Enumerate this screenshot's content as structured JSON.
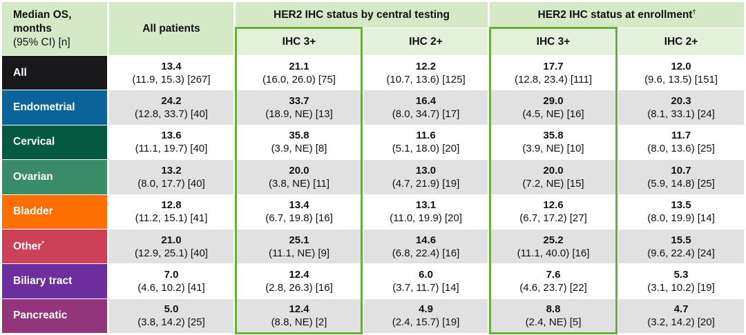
{
  "header": {
    "corner_line1": "Median OS,",
    "corner_line2": "months",
    "corner_line3": "(95% CI) [n]",
    "all_patients": "All patients",
    "group_central": "HER2 IHC status by central testing",
    "group_enrollment": "HER2 IHC status at enrollment",
    "group_enrollment_mark": "†",
    "sub_columns": [
      "IHC 3+",
      "IHC 2+",
      "IHC 3+",
      "IHC 2+"
    ]
  },
  "rows": [
    {
      "label": "All",
      "color": "#18181a",
      "cells": [
        {
          "median": "13.4",
          "ci": "(11.9, 15.3) [267]"
        },
        {
          "median": "21.1",
          "ci": "(16.0, 26.0) [75]"
        },
        {
          "median": "12.2",
          "ci": "(10.7, 13.6) [125]"
        },
        {
          "median": "17.7",
          "ci": "(12.8, 23.4) [111]"
        },
        {
          "median": "12.0",
          "ci": "(9.6, 13.5) [151]"
        }
      ]
    },
    {
      "label": "Endometrial",
      "color": "#0b6499",
      "cells": [
        {
          "median": "24.2",
          "ci": "(12.8, 33.7) [40]"
        },
        {
          "median": "33.7",
          "ci": "(18.9, NE) [13]"
        },
        {
          "median": "16.4",
          "ci": "(8.0, 34.7) [17]"
        },
        {
          "median": "29.0",
          "ci": "(4.5, NE) [16]"
        },
        {
          "median": "20.3",
          "ci": "(8.1, 33.1) [24]"
        }
      ]
    },
    {
      "label": "Cervical",
      "color": "#045a40",
      "cells": [
        {
          "median": "13.6",
          "ci": "(11.1, 19.7) [40]"
        },
        {
          "median": "35.8",
          "ci": "(3.9, NE) [8]"
        },
        {
          "median": "11.6",
          "ci": "(5.1, 18.0) [20]"
        },
        {
          "median": "35.8",
          "ci": "(3.9, NE) [10]"
        },
        {
          "median": "11.7",
          "ci": "(8.0, 13.6) [25]"
        }
      ]
    },
    {
      "label": "Ovarian",
      "color": "#3a8c68",
      "cells": [
        {
          "median": "13.2",
          "ci": "(8.0, 17.7) [40]"
        },
        {
          "median": "20.0",
          "ci": "(3.8, NE) [11]"
        },
        {
          "median": "13.0",
          "ci": "(4.7, 21.9) [19]"
        },
        {
          "median": "20.0",
          "ci": "(7.2, NE) [15]"
        },
        {
          "median": "10.7",
          "ci": "(5.9, 14.8) [25]"
        }
      ]
    },
    {
      "label": "Bladder",
      "color": "#ff6e00",
      "cells": [
        {
          "median": "12.8",
          "ci": "(11.2, 15.1) [41]"
        },
        {
          "median": "13.4",
          "ci": "(6.7, 19.8) [16]"
        },
        {
          "median": "13.1",
          "ci": "(11.0, 19.9) [20]"
        },
        {
          "median": "12.6",
          "ci": "(6.7, 17.2) [27]"
        },
        {
          "median": "13.5",
          "ci": "(8.0, 19.9) [14]"
        }
      ]
    },
    {
      "label": "Other",
      "mark": "*",
      "color": "#cc4157",
      "cells": [
        {
          "median": "21.0",
          "ci": "(12.9, 25.1) [40]"
        },
        {
          "median": "25.1",
          "ci": "(11.1, NE) [9]"
        },
        {
          "median": "14.6",
          "ci": "(6.8, 22.4) [16]"
        },
        {
          "median": "25.2",
          "ci": "(11.1, 40.0) [16]"
        },
        {
          "median": "15.5",
          "ci": "(9.6, 22.4) [24]"
        }
      ]
    },
    {
      "label": "Biliary tract",
      "color": "#6d2f9e",
      "cells": [
        {
          "median": "7.0",
          "ci": "(4.6, 10.2) [41]"
        },
        {
          "median": "12.4",
          "ci": "(2.8, 26.3) [16]"
        },
        {
          "median": "6.0",
          "ci": "(3.7, 11.7) [14]"
        },
        {
          "median": "7.6",
          "ci": "(4.6, 23.7) [22]"
        },
        {
          "median": "5.3",
          "ci": "(3.1, 10.2) [19]"
        }
      ]
    },
    {
      "label": "Pancreatic",
      "color": "#93357a",
      "cells": [
        {
          "median": "5.0",
          "ci": "(3.8, 14.2) [25]"
        },
        {
          "median": "12.4",
          "ci": "(8.8, NE) [2]"
        },
        {
          "median": "4.9",
          "ci": "(2.4, 15.7) [19]"
        },
        {
          "median": "8.8",
          "ci": "(2.4, NE) [5]"
        },
        {
          "median": "4.7",
          "ci": "(3.2, 14.2) [20]"
        }
      ]
    }
  ],
  "colors": {
    "header": "#d4e9c6",
    "subheader": "#e3f0da",
    "highlight_box": "#6aad3d",
    "stripe": "#e1e1e1"
  }
}
